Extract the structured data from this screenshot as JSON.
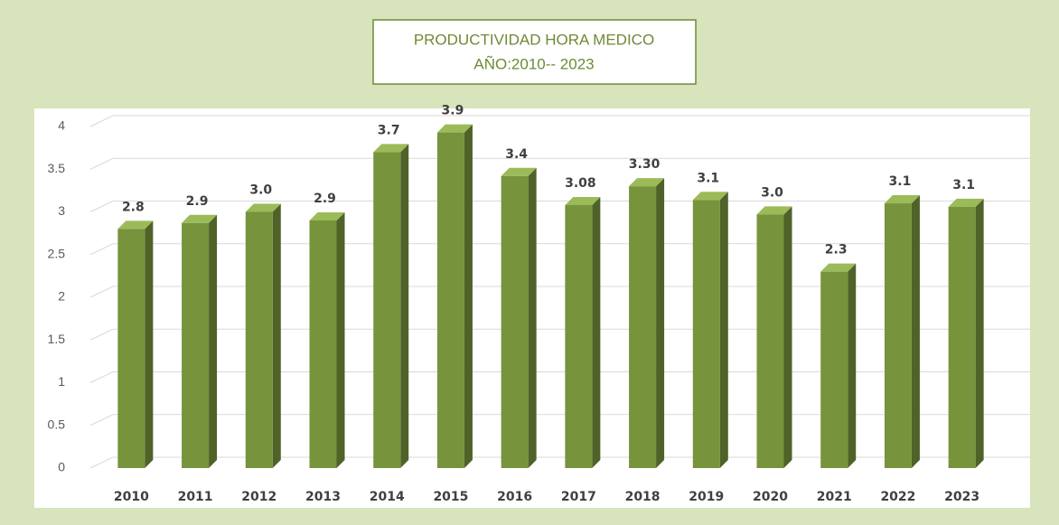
{
  "chart_data": {
    "type": "bar3d",
    "title": "PRODUCTIVIDAD HORA MEDICO",
    "subtitle": "AÑO:2010-- 2023",
    "categories": [
      "2010",
      "2011",
      "2012",
      "2013",
      "2014",
      "2015",
      "2016",
      "2017",
      "2018",
      "2019",
      "2020",
      "2021",
      "2022",
      "2023"
    ],
    "values": [
      2.8,
      2.87,
      3.0,
      2.9,
      3.7,
      3.93,
      3.42,
      3.08,
      3.3,
      3.14,
      2.97,
      2.3,
      3.1,
      3.06
    ],
    "value_labels": [
      "2.8",
      "2.9",
      "3.0",
      "2.9",
      "3.7",
      "3.9",
      "3.4",
      "3.08",
      "3.30",
      "3.1",
      "3.0",
      "2.3",
      "3.1",
      "3.1"
    ],
    "color": "#77933c",
    "ylim": [
      0,
      4
    ],
    "yticks": [
      0,
      0.5,
      1,
      1.5,
      2,
      2.5,
      3,
      3.5,
      4
    ],
    "grid": true
  }
}
